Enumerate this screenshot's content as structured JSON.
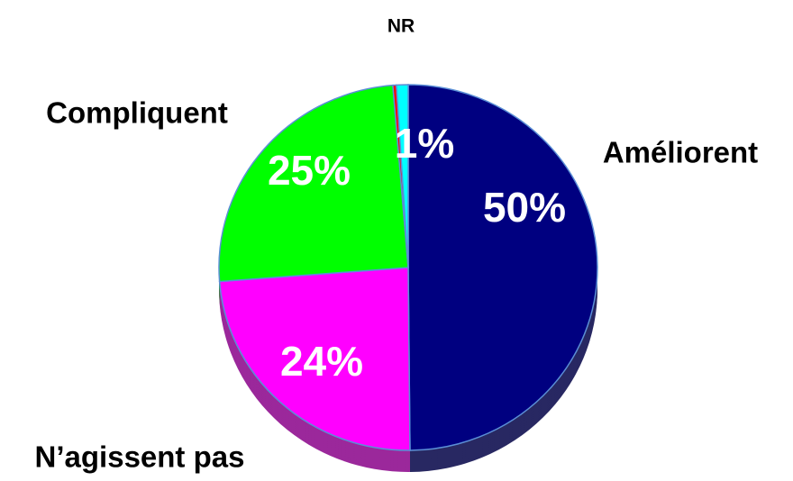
{
  "chart_data": {
    "type": "pie",
    "categories": [
      "Améliorent",
      "N’agissent pas",
      "Compliquent",
      null,
      "NR"
    ],
    "values": [
      50,
      24,
      25,
      0.3,
      1
    ],
    "value_labels": [
      "50%",
      "24%",
      "25%",
      null,
      "1%"
    ],
    "colors": [
      "#000080",
      "#ff00ff",
      "#00ff00",
      "#ff0000",
      "#00ffff"
    ]
  }
}
